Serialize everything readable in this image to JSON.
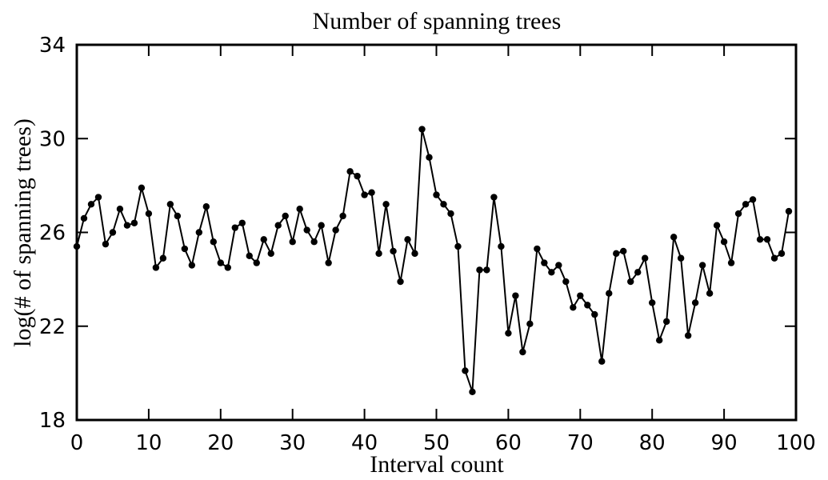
{
  "chart_data": {
    "type": "line",
    "title": "Number of spanning trees",
    "xlabel": "Interval count",
    "ylabel": "log(# of spanning trees)",
    "xlim": [
      0,
      100
    ],
    "ylim": [
      18,
      34
    ],
    "xticks": [
      "0",
      "10",
      "20",
      "30",
      "40",
      "50",
      "60",
      "70",
      "80",
      "90",
      "100"
    ],
    "yticks": [
      "18",
      "22",
      "26",
      "30",
      "34"
    ],
    "grid": false,
    "marker": "circle",
    "color": "#000000",
    "series": [
      {
        "x": [
          0,
          1,
          2,
          3,
          4,
          5,
          6,
          7,
          8,
          9,
          10,
          11,
          12,
          13,
          14,
          15,
          16,
          17,
          18,
          19,
          20,
          21,
          22,
          23,
          24,
          25,
          26,
          27,
          28,
          29,
          30,
          31,
          32,
          33,
          34,
          35,
          36,
          37,
          38,
          39,
          40,
          41,
          42,
          43,
          44,
          45,
          46,
          47,
          48,
          49,
          50,
          51,
          52,
          53,
          54,
          55,
          56,
          57,
          58,
          59,
          60,
          61,
          62,
          63,
          64,
          65,
          66,
          67,
          68,
          69,
          70,
          71,
          72,
          73,
          74,
          75,
          76,
          77,
          78,
          79,
          80,
          81,
          82,
          83,
          84,
          85,
          86,
          87,
          88,
          89,
          90,
          91,
          92,
          93,
          94,
          95,
          96,
          97,
          98,
          99
        ],
        "y": [
          25.4,
          26.6,
          27.2,
          27.5,
          25.5,
          26.0,
          27.0,
          26.3,
          26.4,
          27.9,
          26.8,
          24.5,
          24.9,
          27.2,
          26.7,
          25.3,
          24.6,
          26.0,
          27.1,
          25.6,
          24.7,
          24.5,
          26.2,
          26.4,
          25.0,
          24.7,
          25.7,
          25.1,
          26.3,
          26.7,
          25.6,
          27.0,
          26.1,
          25.6,
          26.3,
          24.7,
          26.1,
          26.7,
          28.6,
          28.4,
          27.6,
          27.7,
          25.1,
          27.2,
          25.2,
          23.9,
          25.7,
          25.1,
          30.4,
          29.2,
          27.6,
          27.2,
          26.8,
          25.4,
          20.1,
          19.2,
          24.4,
          24.4,
          27.5,
          25.4,
          21.7,
          23.3,
          20.9,
          22.1,
          25.3,
          24.7,
          24.3,
          24.6,
          23.9,
          22.8,
          23.3,
          22.9,
          22.5,
          20.5,
          23.4,
          25.1,
          25.2,
          23.9,
          24.3,
          24.9,
          23.0,
          21.4,
          22.2,
          25.8,
          24.9,
          21.6,
          23.0,
          24.6,
          23.4,
          26.3,
          25.6,
          24.7,
          26.8,
          27.2,
          27.4,
          25.7,
          25.7,
          24.9,
          25.1,
          26.9
        ]
      }
    ]
  }
}
